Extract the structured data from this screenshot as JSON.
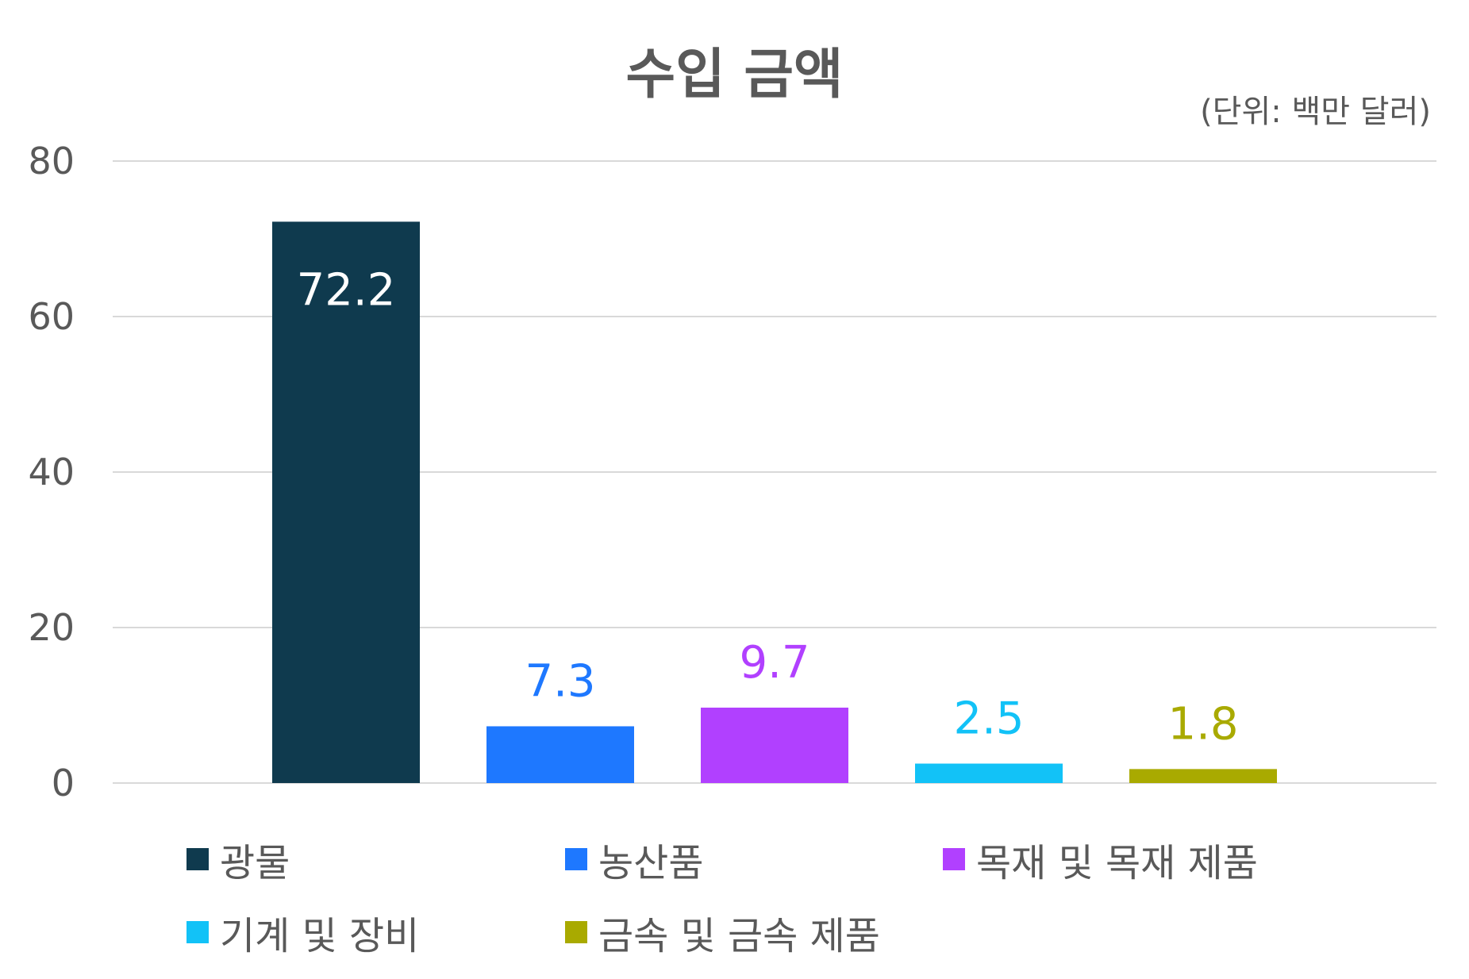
{
  "chart_data": {
    "type": "bar",
    "title": "수입 금액",
    "unit": "(단위: 백만 달러)",
    "categories": [
      "광물",
      "농산품",
      "목재 및 목재 제품",
      "기계 및 장비",
      "금속 및 금속 제품"
    ],
    "values": [
      72.2,
      7.3,
      9.7,
      2.5,
      1.8
    ],
    "value_labels": [
      "72.2",
      "7.3",
      "9.7",
      "2.5",
      "1.8"
    ],
    "colors": [
      "#0f3a4e",
      "#1e78ff",
      "#b140ff",
      "#12c2f7",
      "#a9aa00"
    ],
    "label_colors": [
      "#ffffff",
      "#1e78ff",
      "#b140ff",
      "#12c2f7",
      "#a9aa00"
    ],
    "ylim": [
      0,
      80
    ],
    "yticks": [
      "0",
      "20",
      "40",
      "60",
      "80"
    ],
    "grid": true,
    "legend_position": "bottom"
  }
}
